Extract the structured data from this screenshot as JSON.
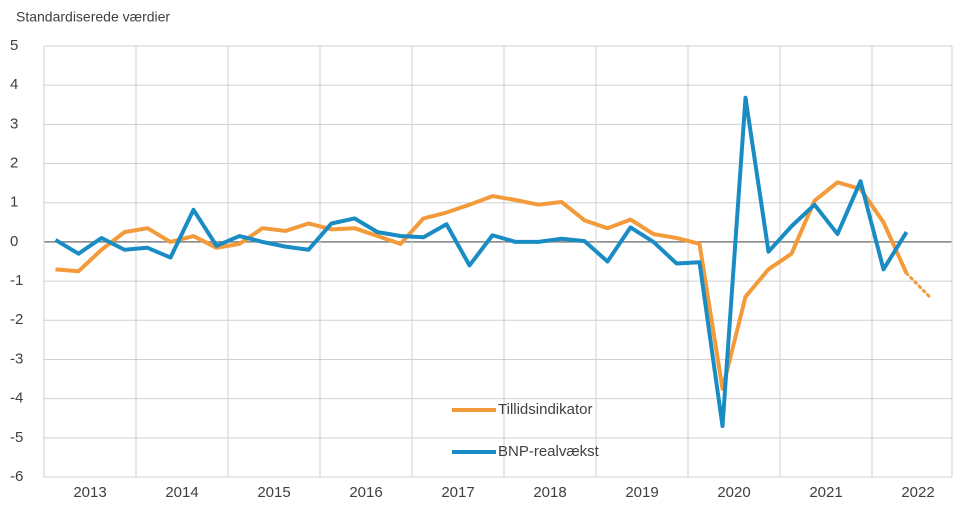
{
  "chart_data": {
    "type": "line",
    "y_axis_label": "Standardiserede værdier",
    "categories": [
      "2013",
      null,
      null,
      null,
      "2014",
      null,
      null,
      null,
      "2015",
      null,
      null,
      null,
      "2016",
      null,
      null,
      null,
      "2017",
      null,
      null,
      null,
      "2018",
      null,
      null,
      null,
      "2019",
      null,
      null,
      null,
      "2020",
      null,
      null,
      null,
      "2021",
      null,
      null,
      null,
      "2022",
      null,
      null
    ],
    "series": [
      {
        "name": "Tillidsindikator",
        "color": "#f39a3b",
        "dotted_from_index": 37,
        "values": [
          -0.7,
          -0.75,
          -0.2,
          0.25,
          0.35,
          0.0,
          0.15,
          -0.15,
          -0.05,
          0.35,
          0.28,
          0.47,
          0.32,
          0.35,
          0.15,
          -0.05,
          0.6,
          0.75,
          0.95,
          1.17,
          1.07,
          0.95,
          1.02,
          0.55,
          0.35,
          0.57,
          0.2,
          0.1,
          -0.05,
          -3.75,
          -1.4,
          -0.7,
          -0.3,
          1.05,
          1.52,
          1.35,
          0.5,
          -0.8,
          -1.4
        ]
      },
      {
        "name": "BNP-realvækst",
        "color": "#1a8cc4",
        "values": [
          0.05,
          -0.3,
          0.1,
          -0.2,
          -0.15,
          -0.4,
          0.82,
          -0.1,
          0.15,
          0.0,
          -0.12,
          -0.2,
          0.47,
          0.6,
          0.25,
          0.15,
          0.12,
          0.45,
          -0.6,
          0.17,
          0.0,
          0.0,
          0.08,
          0.02,
          -0.5,
          0.37,
          0.0,
          -0.55,
          -0.52,
          -4.7,
          3.68,
          -0.25,
          0.4,
          0.95,
          0.2,
          1.55,
          -0.7,
          0.25,
          null
        ]
      }
    ],
    "ylim": [
      -6,
      5
    ],
    "yticks": [
      -6,
      -5,
      -4,
      -3,
      -2,
      -1,
      0,
      1,
      2,
      3,
      4,
      5
    ],
    "grid": true
  }
}
